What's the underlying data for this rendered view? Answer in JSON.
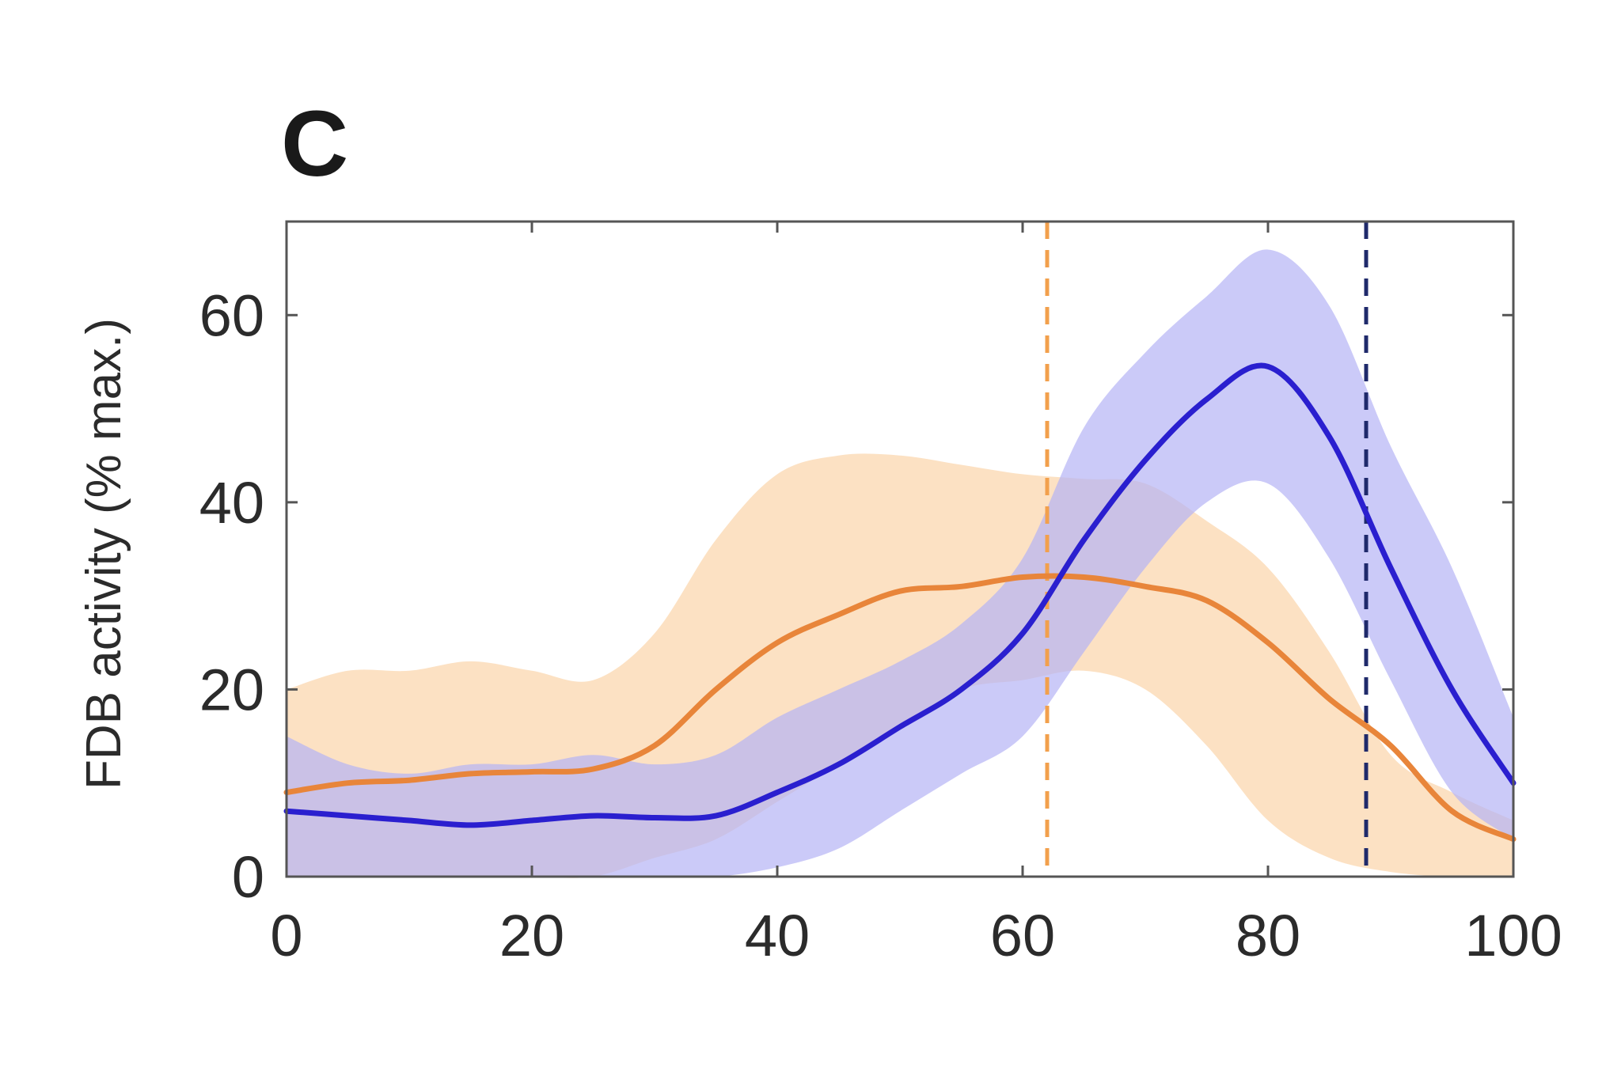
{
  "chart_data": {
    "type": "line",
    "panel_label": "C",
    "xlabel": "",
    "ylabel": "FDB activity (% max.)",
    "xlim": [
      0,
      100
    ],
    "ylim": [
      0,
      70
    ],
    "xticks": [
      0,
      20,
      40,
      60,
      80,
      100
    ],
    "yticks": [
      0,
      20,
      40,
      60
    ],
    "x": [
      0,
      5,
      10,
      15,
      20,
      25,
      30,
      35,
      40,
      45,
      50,
      55,
      60,
      65,
      70,
      75,
      80,
      85,
      90,
      95,
      100
    ],
    "series": [
      {
        "color": "#e8853a",
        "band_color": "#fbdcb8",
        "values": [
          9,
          10,
          10.3,
          11,
          11.2,
          11.5,
          14,
          20,
          25,
          28,
          30.5,
          31,
          32,
          32,
          31,
          29.5,
          25,
          19,
          14,
          7,
          4
        ],
        "upper": [
          20,
          22,
          22,
          23,
          22,
          21,
          26,
          36,
          43,
          45,
          45,
          44,
          43,
          42.5,
          42,
          38,
          33,
          24,
          13,
          9,
          6
        ],
        "lower": [
          0,
          0,
          0,
          0,
          0,
          0,
          2,
          4,
          8,
          12,
          16,
          20,
          21,
          22,
          20,
          14,
          6,
          2,
          0.5,
          0,
          0
        ]
      },
      {
        "color": "#2a1fcf",
        "band_color": "#b5b3f5",
        "values": [
          7,
          6.5,
          6,
          5.5,
          6,
          6.5,
          6.3,
          6.5,
          9,
          12,
          16,
          20,
          26,
          36,
          44.5,
          51,
          54.5,
          47,
          33,
          20,
          10
        ],
        "upper": [
          15,
          12,
          11,
          12,
          12,
          13,
          12,
          13,
          17,
          20,
          23,
          27,
          34,
          48,
          56,
          62,
          67,
          61,
          46,
          33,
          17
        ],
        "lower": [
          0,
          0,
          0,
          0,
          0,
          0,
          0,
          0,
          1,
          3,
          7,
          11,
          15,
          24,
          33,
          40,
          42,
          34,
          21,
          9,
          4
        ]
      }
    ],
    "vertical_lines": [
      {
        "x": 62,
        "color": "#f2a04c",
        "style": "dashed"
      },
      {
        "x": 88,
        "color": "#1f2a6b",
        "style": "dashed"
      }
    ],
    "grid": false,
    "legend": "none"
  }
}
